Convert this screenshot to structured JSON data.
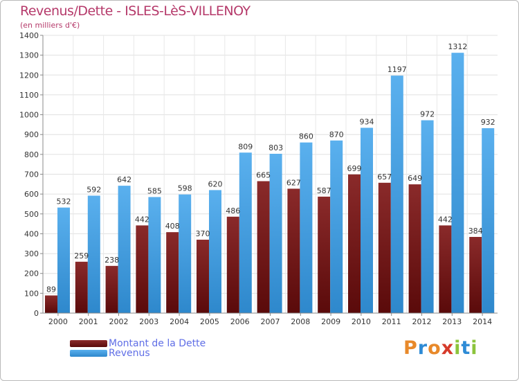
{
  "header": {
    "title": "Revenus/Dette - ISLES-LèS-VILLENOY",
    "subtitle": "(en milliers d'€)"
  },
  "chart_data": {
    "type": "bar",
    "categories": [
      "2000",
      "2001",
      "2002",
      "2003",
      "2004",
      "2005",
      "2006",
      "2007",
      "2008",
      "2009",
      "2010",
      "2011",
      "2012",
      "2013",
      "2014"
    ],
    "series": [
      {
        "name": "Montant de la Dette",
        "color": "#7a1a1a",
        "values": [
          89,
          259,
          238,
          442,
          408,
          370,
          486,
          665,
          627,
          587,
          699,
          657,
          649,
          442,
          384
        ]
      },
      {
        "name": "Revenus",
        "color": "#4aa0e0",
        "values": [
          532,
          592,
          642,
          585,
          598,
          620,
          809,
          803,
          860,
          870,
          934,
          1197,
          972,
          1312,
          932
        ]
      }
    ],
    "ylim": [
      0,
      1400
    ],
    "yticks": [
      0,
      100,
      200,
      300,
      400,
      500,
      600,
      700,
      800,
      900,
      1000,
      1100,
      1200,
      1300,
      1400
    ],
    "grid": true,
    "legend_position": "bottom-left"
  },
  "legend": {
    "debt_label": "Montant de la Dette",
    "revenue_label": "Revenus"
  },
  "logo": {
    "text": "Proxiti",
    "letter_colors": [
      "#e8892a",
      "#2e8bd6",
      "#e8892a",
      "#d63a2a",
      "#8cc43c",
      "#2e8bd6",
      "#8cc43c"
    ]
  }
}
